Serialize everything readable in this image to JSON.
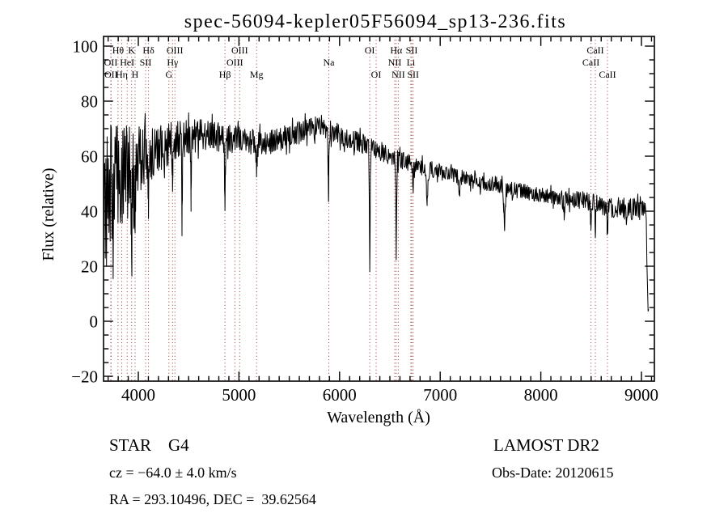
{
  "title": "spec-56094-kepler05F56094_sp13-236.fits",
  "annotations": {
    "class_label": "STAR    G4",
    "survey": "LAMOST DR2",
    "cz": "cz = −64.0 ± 4.0 km/s",
    "obs_date": "Obs-Date: 20120615",
    "ra_dec": "RA = 293.10496, DEC =  39.62564"
  },
  "chart_data": {
    "type": "line",
    "title": "spec-56094-kepler05F56094_sp13-236.fits",
    "xlabel": "Wavelength (Å)",
    "ylabel": "Flux (relative)",
    "xlim": [
      3654,
      9128
    ],
    "ylim": [
      -21.8,
      103.5
    ],
    "x_ticks": [
      4000,
      5000,
      6000,
      7000,
      8000,
      9000
    ],
    "y_ticks": [
      -20,
      0,
      20,
      40,
      60,
      80,
      100
    ],
    "x_minor_step": 100,
    "y_minor_step": 5,
    "grid": false,
    "background": "#ffffff",
    "line_color": "#000000",
    "frame_color": "#000000",
    "marker_color": "#97352c",
    "noise_seed": 11,
    "spectral_lines": [
      {
        "label": "Hθ",
        "wl": 3798,
        "row": 1
      },
      {
        "label": "K",
        "wl": 3933,
        "row": 1
      },
      {
        "label": "Hδ",
        "wl": 4101,
        "row": 1
      },
      {
        "label": "OIII",
        "wl": 4363,
        "row": 1
      },
      {
        "label": "OIII",
        "wl": 5007,
        "row": 1
      },
      {
        "label": "OI",
        "wl": 6300,
        "row": 1
      },
      {
        "label": "Hα",
        "wl": 6563,
        "row": 1
      },
      {
        "label": "SII",
        "wl": 6717,
        "row": 1
      },
      {
        "label": "CaII",
        "wl": 8542,
        "row": 1
      },
      {
        "label": "OII",
        "wl": 3727,
        "row": 2
      },
      {
        "label": "HeI",
        "wl": 3889,
        "row": 2
      },
      {
        "label": "SII",
        "wl": 4072,
        "row": 2
      },
      {
        "label": "Hγ",
        "wl": 4340,
        "row": 2
      },
      {
        "label": "OIII",
        "wl": 4959,
        "row": 2
      },
      {
        "label": "Na",
        "wl": 5893,
        "row": 2
      },
      {
        "label": "NII",
        "wl": 6548,
        "row": 2
      },
      {
        "label": "Li",
        "wl": 6708,
        "row": 2
      },
      {
        "label": "CaII",
        "wl": 8498,
        "row": 2
      },
      {
        "label": "OII",
        "wl": 3729,
        "row": 3
      },
      {
        "label": "Hη",
        "wl": 3835,
        "row": 3
      },
      {
        "label": "H",
        "wl": 3968,
        "row": 3
      },
      {
        "label": "G",
        "wl": 4304,
        "row": 3
      },
      {
        "label": "Hβ",
        "wl": 4861,
        "row": 3
      },
      {
        "label": "Mg",
        "wl": 5175,
        "row": 3
      },
      {
        "label": "OI",
        "wl": 6363,
        "row": 3
      },
      {
        "label": "NII",
        "wl": 6584,
        "row": 3
      },
      {
        "label": "SII",
        "wl": 6731,
        "row": 3
      },
      {
        "label": "CaII",
        "wl": 8662,
        "row": 3
      }
    ],
    "continuum": [
      [
        3654,
        36
      ],
      [
        3690,
        46
      ],
      [
        3740,
        49
      ],
      [
        3800,
        51
      ],
      [
        3860,
        53
      ],
      [
        3920,
        55
      ],
      [
        3980,
        57
      ],
      [
        4060,
        59
      ],
      [
        4140,
        61
      ],
      [
        4220,
        63
      ],
      [
        4320,
        65
      ],
      [
        4420,
        66
      ],
      [
        4520,
        67
      ],
      [
        4650,
        68
      ],
      [
        4800,
        67
      ],
      [
        4950,
        66
      ],
      [
        5100,
        65
      ],
      [
        5250,
        65
      ],
      [
        5400,
        66
      ],
      [
        5550,
        68
      ],
      [
        5700,
        70
      ],
      [
        5820,
        71
      ],
      [
        5920,
        69
      ],
      [
        6050,
        67
      ],
      [
        6200,
        65
      ],
      [
        6350,
        63
      ],
      [
        6500,
        60
      ],
      [
        6650,
        58
      ],
      [
        6800,
        56
      ],
      [
        6950,
        55
      ],
      [
        7100,
        53
      ],
      [
        7250,
        52
      ],
      [
        7400,
        50
      ],
      [
        7550,
        50
      ],
      [
        7700,
        48
      ],
      [
        7850,
        47
      ],
      [
        8000,
        46
      ],
      [
        8150,
        45
      ],
      [
        8300,
        44
      ],
      [
        8450,
        44
      ],
      [
        8600,
        42
      ],
      [
        8750,
        41
      ],
      [
        8900,
        41
      ],
      [
        9000,
        40
      ],
      [
        9045,
        42
      ],
      [
        9058,
        14
      ],
      [
        9068,
        2
      ],
      [
        9075,
        5
      ]
    ],
    "noise_amplitude": [
      [
        3654,
        26
      ],
      [
        3700,
        27
      ],
      [
        3760,
        24
      ],
      [
        3820,
        21
      ],
      [
        3880,
        18
      ],
      [
        3950,
        16
      ],
      [
        4020,
        13
      ],
      [
        4100,
        11
      ],
      [
        4200,
        9
      ],
      [
        4350,
        7.5
      ],
      [
        4500,
        6.5
      ],
      [
        4800,
        5.5
      ],
      [
        5100,
        5
      ],
      [
        5500,
        4.5
      ],
      [
        6000,
        4
      ],
      [
        6500,
        3.5
      ],
      [
        7000,
        3
      ],
      [
        7600,
        2.8
      ],
      [
        8200,
        3
      ],
      [
        8700,
        4
      ],
      [
        8950,
        4.5
      ],
      [
        9030,
        3
      ],
      [
        9060,
        1.5
      ],
      [
        9075,
        1
      ]
    ],
    "features": [
      [
        3933,
        -20,
        5
      ],
      [
        3968,
        -16,
        5
      ],
      [
        4101,
        -17,
        4
      ],
      [
        4340,
        -13,
        4
      ],
      [
        4435,
        -27,
        3
      ],
      [
        4524,
        -22,
        3
      ],
      [
        4861,
        -24,
        4
      ],
      [
        5175,
        -8,
        7
      ],
      [
        5890,
        -25,
        4
      ],
      [
        6300,
        -43,
        4
      ],
      [
        6563,
        -32,
        4
      ],
      [
        6731,
        -8,
        4
      ],
      [
        6871,
        -11,
        8
      ],
      [
        7190,
        -6,
        8
      ],
      [
        7640,
        -12,
        9
      ],
      [
        8230,
        -5,
        7
      ],
      [
        8498,
        -8,
        4
      ],
      [
        8542,
        -9,
        4
      ],
      [
        8662,
        -8,
        4
      ]
    ]
  }
}
